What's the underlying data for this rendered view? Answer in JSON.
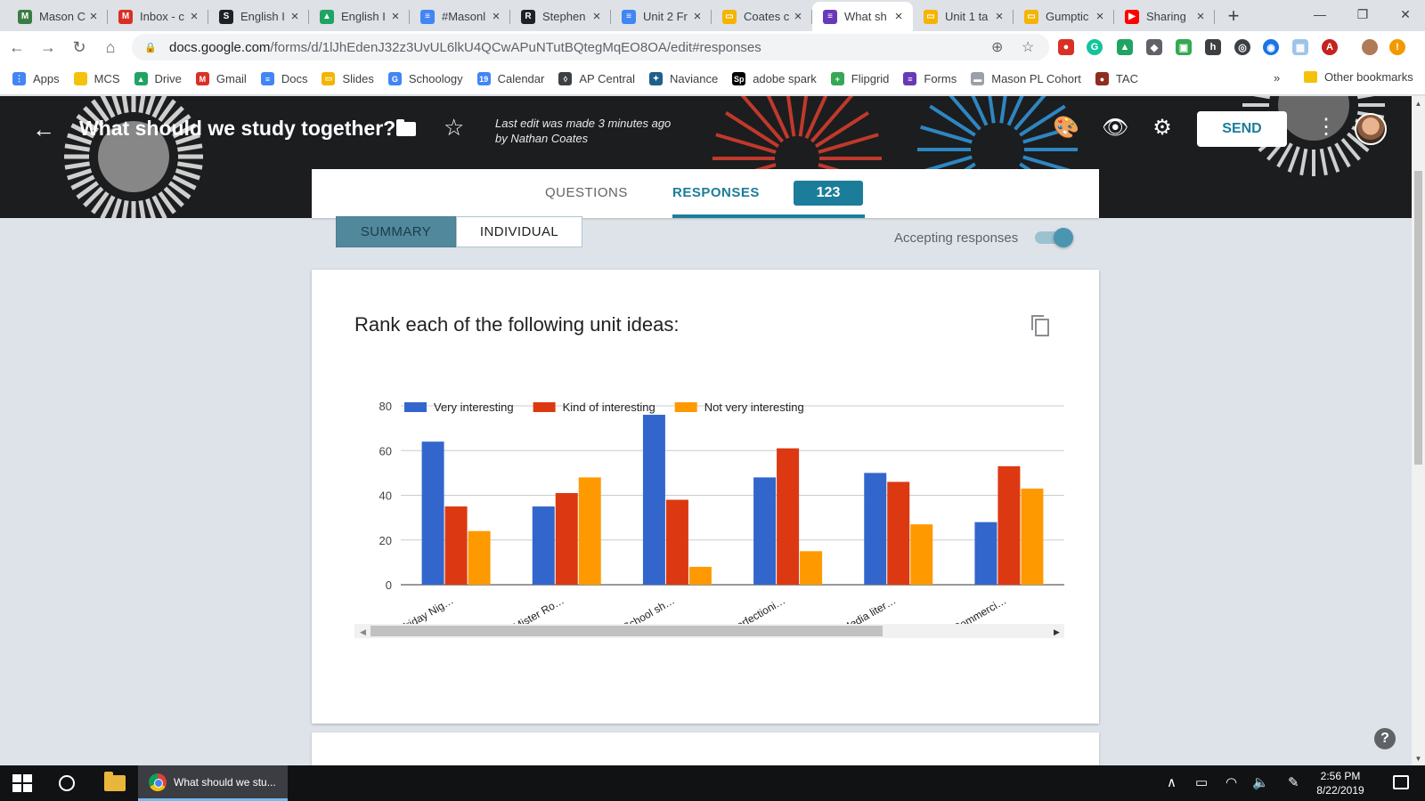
{
  "browser": {
    "tabs": [
      {
        "title": "Mason C",
        "fav_color": "#3a7d44",
        "fav_glyph": "M"
      },
      {
        "title": "Inbox - c",
        "fav_color": "#d93025",
        "fav_glyph": "M"
      },
      {
        "title": "English I",
        "fav_color": "#202124",
        "fav_glyph": "S"
      },
      {
        "title": "English I",
        "fav_color": "#1fa463",
        "fav_glyph": "▲"
      },
      {
        "title": "#Masonl",
        "fav_color": "#4285f4",
        "fav_glyph": "≡"
      },
      {
        "title": "Stephen",
        "fav_color": "#202124",
        "fav_glyph": "R"
      },
      {
        "title": "Unit 2 Fr",
        "fav_color": "#4285f4",
        "fav_glyph": "≡"
      },
      {
        "title": "Coates c",
        "fav_color": "#f4b400",
        "fav_glyph": "▭"
      },
      {
        "title": "What sh",
        "fav_color": "#673ab7",
        "fav_glyph": "≡",
        "active": true
      },
      {
        "title": "Unit 1 ta",
        "fav_color": "#f4b400",
        "fav_glyph": "▭"
      },
      {
        "title": "Gumptic",
        "fav_color": "#f4b400",
        "fav_glyph": "▭"
      },
      {
        "title": "Sharing",
        "fav_color": "#ff0000",
        "fav_glyph": "▶"
      }
    ],
    "url_host": "docs.google.com",
    "url_path": "/forms/d/1lJhEdenJ32z3UvUL6lkU4QCwAPuNTutBQtegMqEO8OA/edit#responses",
    "bookmarks": [
      {
        "label": "Apps",
        "color": "#4285f4",
        "glyph": "⋮"
      },
      {
        "label": "MCS",
        "color": "#f4c20d",
        "glyph": ""
      },
      {
        "label": "Drive",
        "color": "#1fa463",
        "glyph": "▲"
      },
      {
        "label": "Gmail",
        "color": "#d93025",
        "glyph": "M"
      },
      {
        "label": "Docs",
        "color": "#4285f4",
        "glyph": "≡"
      },
      {
        "label": "Slides",
        "color": "#f4b400",
        "glyph": "▭"
      },
      {
        "label": "Schoology",
        "color": "#4285f4",
        "glyph": "G"
      },
      {
        "label": "Calendar",
        "color": "#4285f4",
        "glyph": "19"
      },
      {
        "label": "AP Central",
        "color": "#3c4043",
        "glyph": "◊"
      },
      {
        "label": "Naviance",
        "color": "#1f5f8b",
        "glyph": "✦"
      },
      {
        "label": "adobe spark",
        "color": "#000000",
        "glyph": "Sp"
      },
      {
        "label": "Flipgrid",
        "color": "#34a853",
        "glyph": "+"
      },
      {
        "label": "Forms",
        "color": "#673ab7",
        "glyph": "≡"
      },
      {
        "label": "Mason PL Cohort",
        "color": "#9aa0a6",
        "glyph": "▬"
      },
      {
        "label": "TAC",
        "color": "#8e2d1f",
        "glyph": "●"
      }
    ],
    "bookmarks_overflow": "»",
    "other_bookmarks": "Other bookmarks"
  },
  "form": {
    "title": "What should we study together?",
    "last_edit": "Last edit was made 3 minutes ago by Nathan Coates",
    "send_label": "SEND",
    "tab_questions": "QUESTIONS",
    "tab_responses": "RESPONSES",
    "responses_count": "123",
    "summary_label": "SUMMARY",
    "individual_label": "INDIVIDUAL",
    "accepting_label": "Accepting responses",
    "accepting": true,
    "question_title": "Rank each of the following unit ideas:"
  },
  "chart_data": {
    "type": "bar",
    "categories": [
      "Friday Nig…",
      "Mister Ro…",
      "School sh…",
      "Perfectioni…",
      "Media liter…",
      "Commerci…"
    ],
    "series": [
      {
        "name": "Very interesting",
        "color": "#3366cc",
        "values": [
          64,
          35,
          76,
          48,
          50,
          28
        ]
      },
      {
        "name": "Kind of interesting",
        "color": "#dc3912",
        "values": [
          35,
          41,
          38,
          61,
          46,
          53
        ]
      },
      {
        "name": "Not very interesting",
        "color": "#ff9900",
        "values": [
          24,
          48,
          8,
          15,
          27,
          43
        ]
      }
    ],
    "ylim": [
      0,
      80
    ],
    "yticks": [
      0,
      20,
      40,
      60,
      80
    ],
    "grid": true,
    "legend": "top"
  },
  "taskbar": {
    "chrome_task_label": "What should we stu...",
    "time": "2:56 PM",
    "date": "8/22/2019"
  }
}
